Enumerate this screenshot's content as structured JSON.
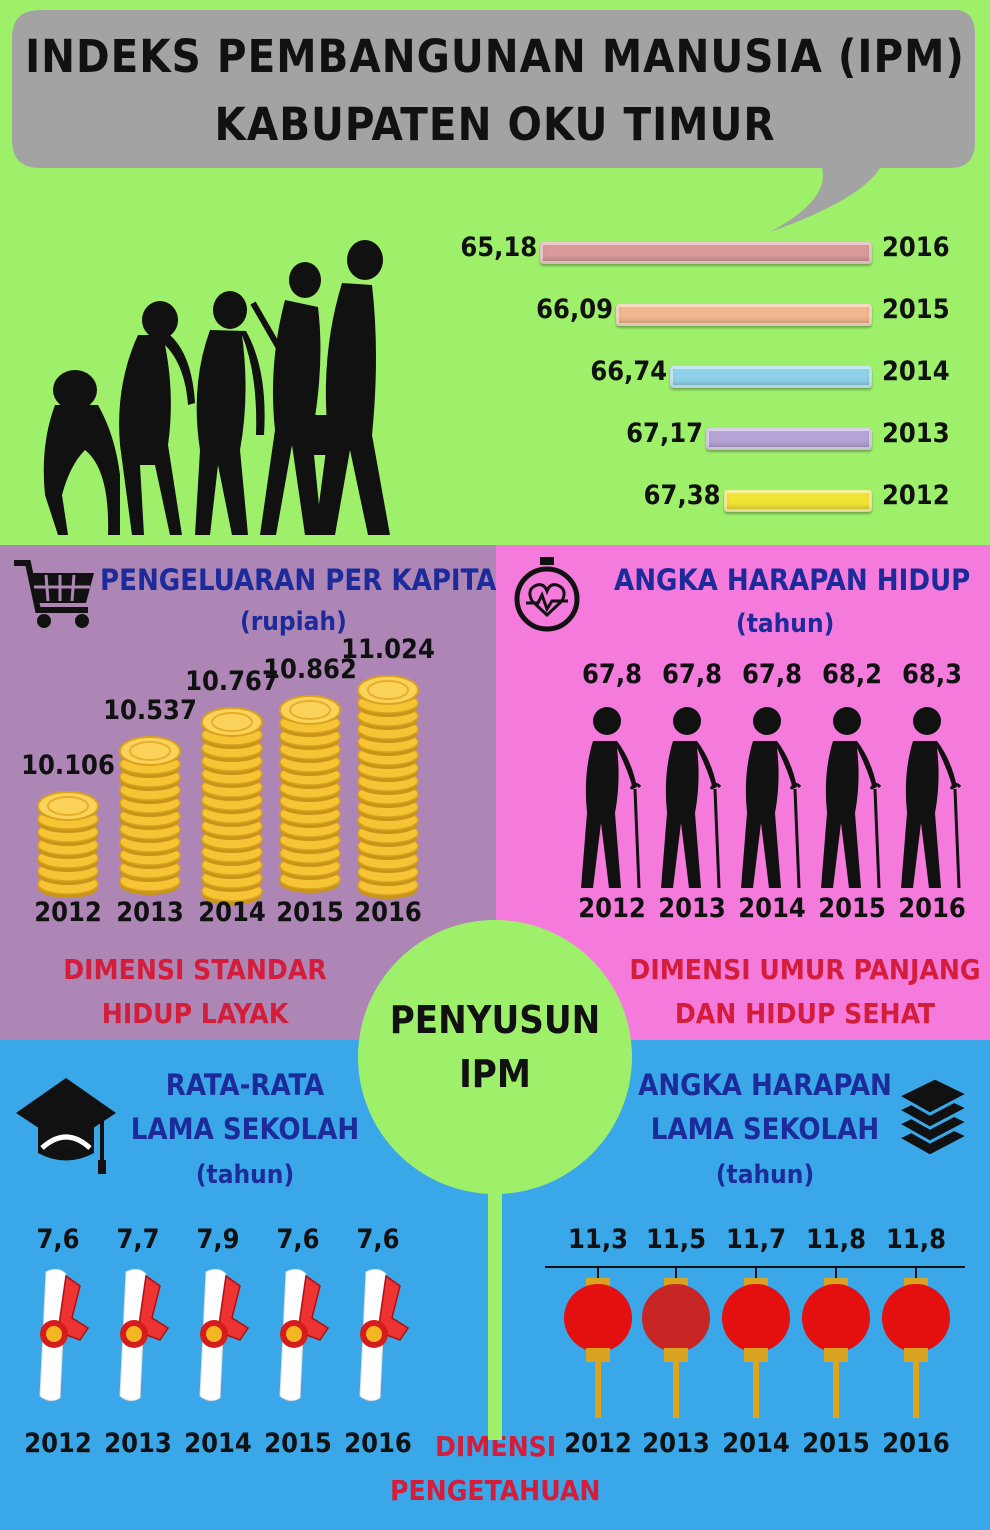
{
  "title": {
    "line1": "INDEKS PEMBANGUNAN MANUSIA (IPM)",
    "line2": "KABUPATEN OKU TIMUR"
  },
  "chart_data": [
    {
      "type": "bar",
      "orientation": "horizontal",
      "categories": [
        "2016",
        "2015",
        "2014",
        "2013",
        "2012"
      ],
      "values": [
        65.18,
        66.09,
        66.74,
        67.17,
        67.38
      ],
      "value_labels": [
        "65,18",
        "66,09",
        "66,74",
        "67,17",
        "67,38"
      ],
      "colors": [
        "#d99a9a",
        "#f0b88c",
        "#8fd2ea",
        "#b5a3d6",
        "#f2e436"
      ]
    },
    {
      "type": "bar",
      "title": "PENGELUARAN PER KAPITA",
      "unit": "(rupiah)",
      "categories": [
        "2012",
        "2013",
        "2014",
        "2015",
        "2016"
      ],
      "values": [
        10106,
        10537,
        10767,
        10862,
        11024
      ],
      "value_labels": [
        "10.106",
        "10.537",
        "10.767",
        "10.862",
        "11.024"
      ]
    },
    {
      "type": "bar",
      "title": "ANGKA HARAPAN HIDUP",
      "unit": "(tahun)",
      "categories": [
        "2012",
        "2013",
        "2014",
        "2015",
        "2016"
      ],
      "values": [
        67.8,
        67.8,
        67.8,
        68.2,
        68.3
      ],
      "value_labels": [
        "67,8",
        "67,8",
        "67,8",
        "68,2",
        "68,3"
      ]
    },
    {
      "type": "bar",
      "title_line1": "RATA-RATA",
      "title_line2": "LAMA SEKOLAH",
      "unit": "(tahun)",
      "categories": [
        "2012",
        "2013",
        "2014",
        "2015",
        "2016"
      ],
      "values": [
        7.6,
        7.7,
        7.9,
        7.6,
        7.6
      ],
      "value_labels": [
        "7,6",
        "7,7",
        "7,9",
        "7,6",
        "7,6"
      ]
    },
    {
      "type": "bar",
      "title_line1": "ANGKA HARAPAN",
      "title_line2": "LAMA SEKOLAH",
      "unit": "(tahun)",
      "categories": [
        "2012",
        "2013",
        "2014",
        "2015",
        "2016"
      ],
      "values": [
        11.3,
        11.5,
        11.7,
        11.8,
        11.8
      ],
      "value_labels": [
        "11,3",
        "11,5",
        "11,7",
        "11,8",
        "11,8"
      ]
    }
  ],
  "dimensions": {
    "standar_line1": "DIMENSI STANDAR",
    "standar_line2": "HIDUP LAYAK",
    "umur_line1": "DIMENSI UMUR PANJANG",
    "umur_line2": "DAN HIDUP SEHAT",
    "pengetahuan_line1": "DIMENSI",
    "pengetahuan_line2": "PENGETAHUAN"
  },
  "center": {
    "line1": "PENYUSUN",
    "line2": "IPM"
  },
  "icons": {
    "evolution": "human-evolution-icon",
    "cart": "shopping-cart-icon",
    "coin": "coin-stack-icon",
    "heart": "heart-stopwatch-icon",
    "elder": "elderly-person-icon",
    "cap": "graduation-cap-icon",
    "diploma": "diploma-scroll-icon",
    "books": "book-stack-icon",
    "lantern": "lantern-icon"
  },
  "colors": {
    "top_bg": "#9ef06a",
    "spend_bg": "#ad86b5",
    "life_bg": "#f47bdc",
    "edu_bg": "#3aa7e9",
    "heading_blue": "#1c2a9a",
    "dimension_red": "#d31d3a"
  }
}
